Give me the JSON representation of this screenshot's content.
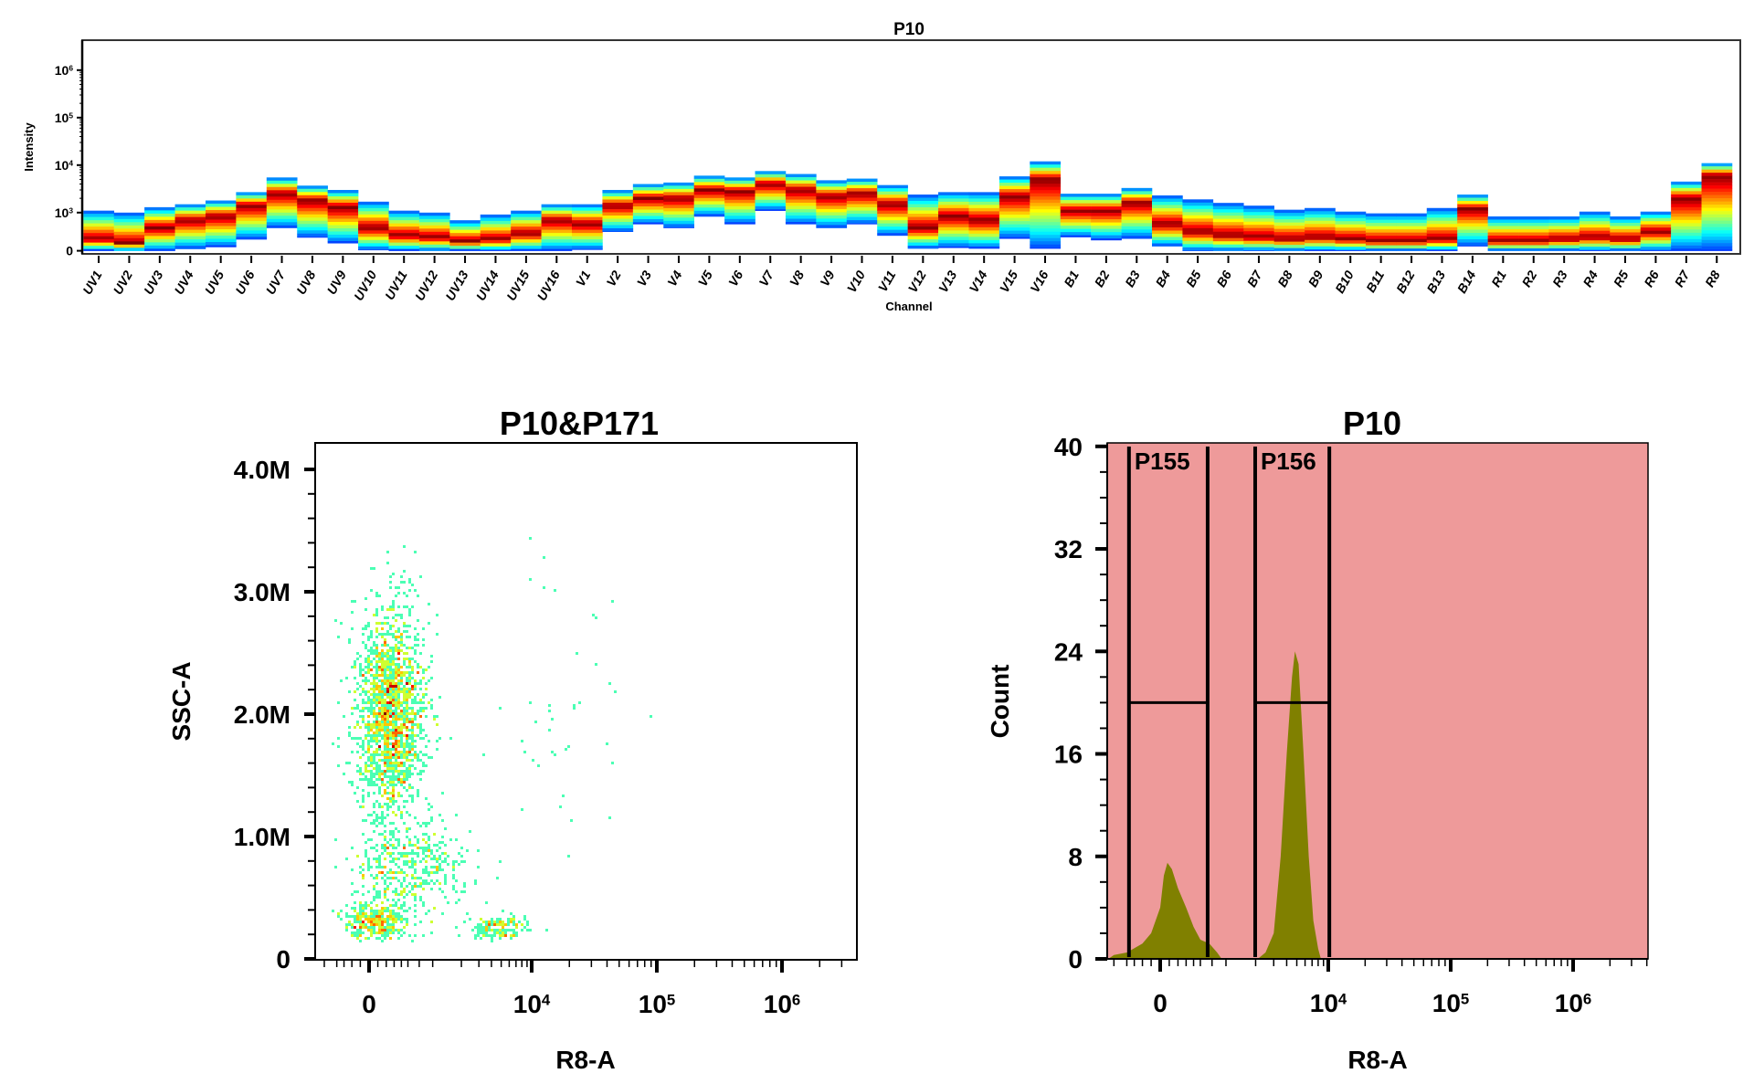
{
  "chart_data": [
    {
      "type": "heatmap",
      "title": "P10",
      "xlabel": "Channel",
      "ylabel": "Intensity",
      "y_scale": "biexponential-log",
      "y_ticks": [
        "0",
        "10^3",
        "10^4",
        "10^5",
        "10^6"
      ],
      "colormap": "jet",
      "channels": [
        "UV1",
        "UV2",
        "UV3",
        "UV4",
        "UV5",
        "UV6",
        "UV7",
        "UV8",
        "UV9",
        "UV10",
        "UV11",
        "UV12",
        "UV13",
        "UV14",
        "UV15",
        "UV16",
        "V1",
        "V2",
        "V3",
        "V4",
        "V5",
        "V6",
        "V7",
        "V8",
        "V9",
        "V10",
        "V11",
        "V12",
        "V13",
        "V14",
        "V15",
        "V16",
        "B1",
        "B2",
        "B3",
        "B4",
        "B5",
        "B6",
        "B7",
        "B8",
        "B9",
        "B10",
        "B11",
        "B12",
        "B13",
        "B14",
        "R1",
        "R2",
        "R3",
        "R4",
        "R5",
        "R6",
        "R7",
        "R8"
      ],
      "max": [
        1100,
        1000,
        1300,
        1500,
        1800,
        2700,
        5500,
        3700,
        3000,
        1700,
        1100,
        1000,
        800,
        950,
        1100,
        1500,
        1500,
        3000,
        4000,
        4300,
        6000,
        5500,
        7500,
        6500,
        4800,
        5200,
        3800,
        2400,
        2700,
        2700,
        5800,
        12000,
        2500,
        2500,
        3300,
        2300,
        1900,
        1600,
        1400,
        1150,
        1250,
        1050,
        980,
        980,
        1250,
        2400,
        900,
        900,
        900,
        1050,
        900,
        1050,
        4500,
        11000
      ],
      "peak": [
        300,
        200,
        600,
        800,
        900,
        1400,
        2500,
        1800,
        1300,
        600,
        400,
        350,
        250,
        300,
        450,
        800,
        700,
        1400,
        2000,
        2000,
        3000,
        2800,
        4000,
        3000,
        2200,
        2500,
        1500,
        600,
        900,
        800,
        2200,
        5000,
        1100,
        1100,
        1600,
        700,
        500,
        400,
        350,
        300,
        350,
        300,
        250,
        250,
        300,
        1200,
        250,
        250,
        300,
        350,
        300,
        500,
        2000,
        6000
      ],
      "min": [
        0,
        0,
        0,
        50,
        100,
        300,
        600,
        350,
        200,
        20,
        0,
        0,
        0,
        0,
        0,
        0,
        30,
        500,
        700,
        600,
        900,
        700,
        1100,
        700,
        600,
        700,
        400,
        60,
        80,
        60,
        320,
        60,
        360,
        280,
        320,
        120,
        0,
        0,
        0,
        0,
        0,
        0,
        0,
        0,
        0,
        120,
        0,
        0,
        0,
        0,
        0,
        0,
        0,
        0
      ]
    },
    {
      "type": "scatter",
      "title": "P10&P171",
      "xlabel": "R8-A",
      "ylabel": "SSC-A",
      "x_scale": "biexponential",
      "x_ticks": [
        "0",
        "10^4",
        "10^5",
        "10^6"
      ],
      "y_ticks": [
        "0",
        "1.0M",
        "2.0M",
        "3.0M",
        "4.0M"
      ],
      "ylim": [
        0,
        4200000
      ],
      "coloring": "density (jet)",
      "populations": [
        {
          "x_center": 250,
          "x_sd": 250,
          "y_center": 2000000,
          "y_sd": 450000,
          "count": 1800
        },
        {
          "x_center": 500,
          "x_sd": 600,
          "y_center": 750000,
          "y_sd": 200000,
          "count": 420
        },
        {
          "x_center": 80,
          "x_sd": 200,
          "y_center": 300000,
          "y_sd": 80000,
          "count": 350
        },
        {
          "x_center": 5000,
          "x_sd": 2000,
          "y_center": 250000,
          "y_sd": 50000,
          "count": 150
        },
        {
          "x_center": 15000,
          "x_sd": 15000,
          "y_center": 2200000,
          "y_sd": 700000,
          "count": 40
        }
      ]
    },
    {
      "type": "area",
      "title": "P10",
      "xlabel": "R8-A",
      "ylabel": "Count",
      "x_scale": "biexponential",
      "x_ticks": [
        "0",
        "10^4",
        "10^5",
        "10^6"
      ],
      "y_ticks": [
        "0",
        "8",
        "16",
        "24",
        "32",
        "40"
      ],
      "ylim": [
        0,
        40
      ],
      "fill_color": "#808000",
      "background_color": "#EE9A9A",
      "points": [
        [
          -700,
          0
        ],
        [
          -600,
          0.3
        ],
        [
          -400,
          0.5
        ],
        [
          -200,
          1.2
        ],
        [
          -100,
          2
        ],
        [
          0,
          4
        ],
        [
          40,
          6.5
        ],
        [
          80,
          7.5
        ],
        [
          130,
          7
        ],
        [
          200,
          5.5
        ],
        [
          300,
          4
        ],
        [
          400,
          2.5
        ],
        [
          500,
          1.5
        ],
        [
          650,
          1.2
        ],
        [
          800,
          0.5
        ],
        [
          900,
          0
        ],
        [
          2100,
          0
        ],
        [
          2500,
          0.5
        ],
        [
          3000,
          2
        ],
        [
          3500,
          8
        ],
        [
          4000,
          16
        ],
        [
          4500,
          22
        ],
        [
          4800,
          24
        ],
        [
          5200,
          23
        ],
        [
          5800,
          16
        ],
        [
          6500,
          8
        ],
        [
          7200,
          3
        ],
        [
          8000,
          0.8
        ],
        [
          8500,
          0
        ]
      ],
      "gates": [
        {
          "label": "P155",
          "x_range": [
            -370,
            620
          ],
          "y": 20
        },
        {
          "label": "P156",
          "x_range": [
            1980,
            10200
          ],
          "y": 20
        }
      ]
    }
  ]
}
